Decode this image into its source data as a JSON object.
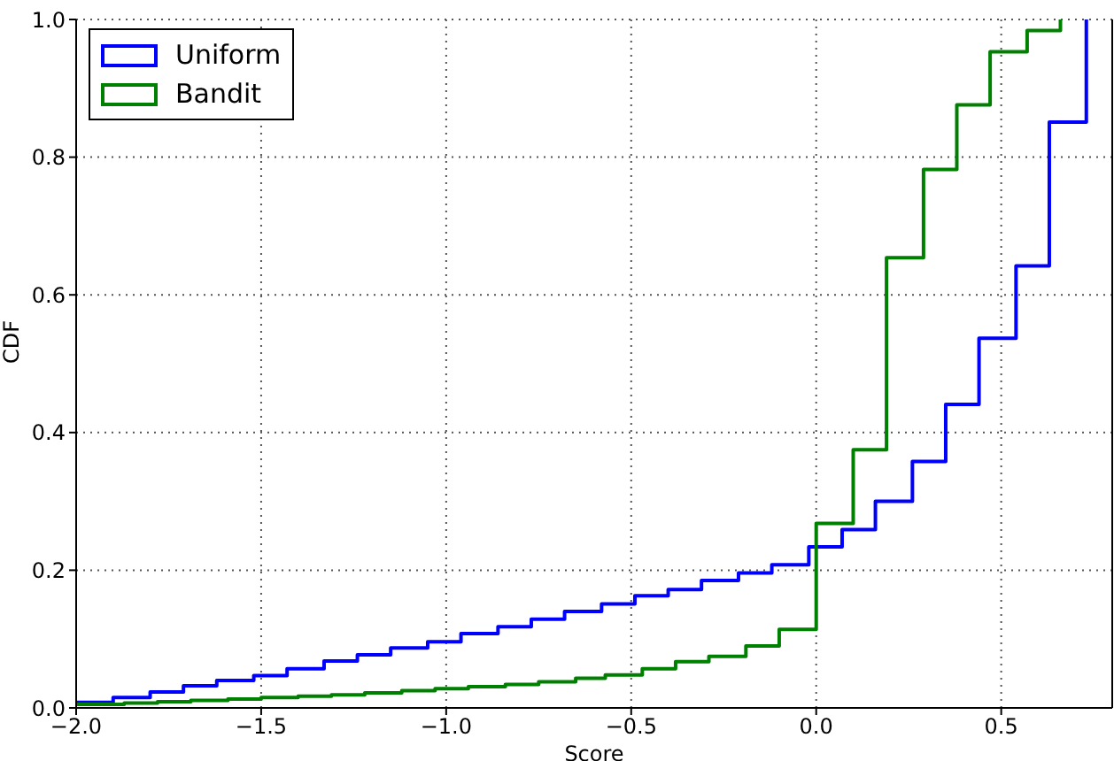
{
  "chart_data": {
    "type": "step",
    "xlabel": "Score",
    "ylabel": "CDF",
    "xlim": [
      -2.0,
      0.8
    ],
    "xticks": [
      {
        "value": -2.0,
        "label": "−2.0"
      },
      {
        "value": -1.5,
        "label": "−1.5"
      },
      {
        "value": -1.0,
        "label": "−1.0"
      },
      {
        "value": -0.5,
        "label": "−0.5"
      },
      {
        "value": 0.0,
        "label": "0.0"
      },
      {
        "value": 0.5,
        "label": "0.5"
      }
    ],
    "ylim": [
      0,
      1.0
    ],
    "yticks": [
      {
        "value": 0,
        "label": "0.0"
      },
      {
        "value": 0.2,
        "label": "0.2"
      },
      {
        "value": 0.4,
        "label": "0.4"
      },
      {
        "value": 0.6,
        "label": "0.6"
      },
      {
        "value": 0.8,
        "label": "0.8"
      },
      {
        "value": 1.0,
        "label": "1.0"
      }
    ],
    "grid": true,
    "legend": "top left",
    "line_style": "solid",
    "marker": "none",
    "series": [
      {
        "name": "Uniform",
        "color": "#0000ff",
        "x": [
          -2.0,
          -1.9,
          -1.8,
          -1.71,
          -1.62,
          -1.52,
          -1.43,
          -1.33,
          -1.24,
          -1.15,
          -1.05,
          -0.96,
          -0.86,
          -0.77,
          -0.68,
          -0.58,
          -0.49,
          -0.4,
          -0.31,
          -0.21,
          -0.12,
          -0.02,
          0.07,
          0.16,
          0.26,
          0.35,
          0.44,
          0.54,
          0.63,
          0.73
        ],
        "values": [
          0.008,
          0.015,
          0.023,
          0.032,
          0.04,
          0.047,
          0.057,
          0.068,
          0.077,
          0.087,
          0.096,
          0.108,
          0.118,
          0.129,
          0.14,
          0.151,
          0.163,
          0.172,
          0.185,
          0.196,
          0.208,
          0.234,
          0.259,
          0.3,
          0.358,
          0.441,
          0.537,
          0.642,
          0.851,
          1.0
        ]
      },
      {
        "name": "Bandit",
        "color": "#008000",
        "x": [
          -2.0,
          -1.87,
          -1.78,
          -1.69,
          -1.59,
          -1.5,
          -1.4,
          -1.31,
          -1.22,
          -1.12,
          -1.03,
          -0.94,
          -0.84,
          -0.75,
          -0.65,
          -0.57,
          -0.47,
          -0.38,
          -0.29,
          -0.19,
          -0.1,
          0.0,
          0.1,
          0.19,
          0.29,
          0.38,
          0.47,
          0.57,
          0.66
        ],
        "values": [
          0.005,
          0.007,
          0.009,
          0.011,
          0.013,
          0.015,
          0.017,
          0.019,
          0.022,
          0.025,
          0.028,
          0.031,
          0.034,
          0.038,
          0.043,
          0.048,
          0.057,
          0.067,
          0.075,
          0.09,
          0.114,
          0.268,
          0.375,
          0.654,
          0.782,
          0.876,
          0.953,
          0.984,
          1.0
        ]
      }
    ]
  }
}
